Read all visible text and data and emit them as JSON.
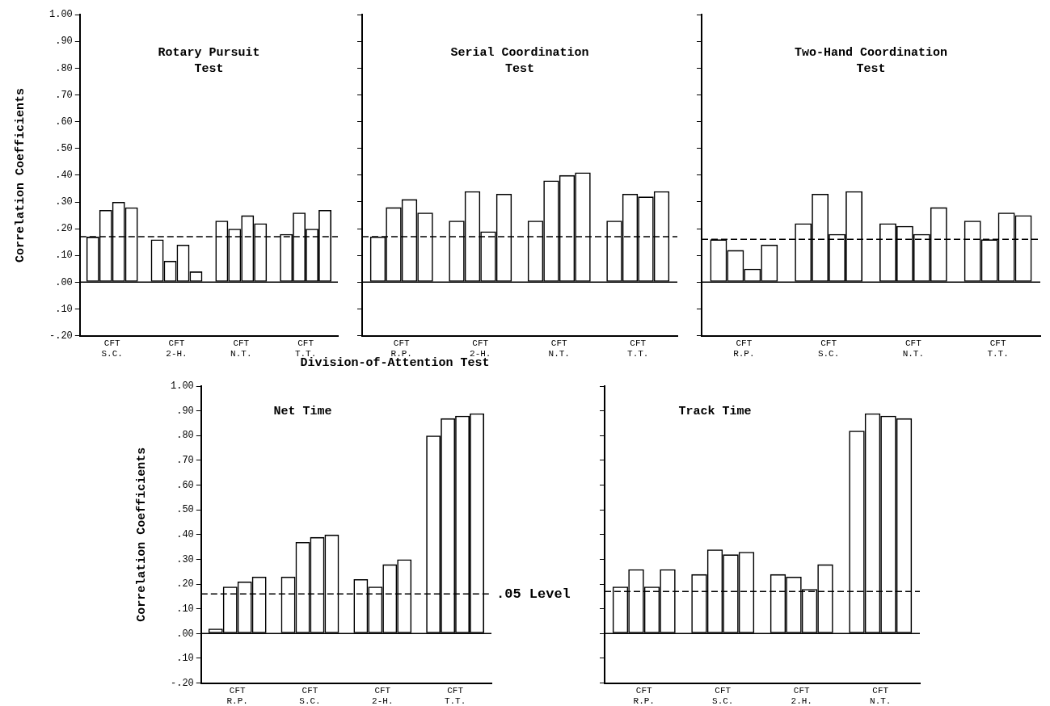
{
  "chart_data": [
    {
      "type": "bar",
      "title": "Rotary Pursuit\nTest",
      "ylabel": "Correlation Coefficients",
      "categories": [
        "CFT\nS.C.",
        "CFT\n2-H.",
        "CFT\nN.T.",
        "CFT\nT.T."
      ],
      "series": [
        {
          "color": "#000000",
          "values": [
            0.17,
            0.16,
            0.23,
            0.18
          ]
        },
        {
          "color": "#000000",
          "values": [
            0.27,
            0.08,
            0.2,
            0.26
          ]
        },
        {
          "color": "#000000",
          "values": [
            0.3,
            0.14,
            0.25,
            0.2
          ]
        },
        {
          "color": "#000000",
          "values": [
            0.28,
            0.04,
            0.22,
            0.27
          ]
        }
      ],
      "ylim": [
        -0.2,
        1
      ],
      "yticks": [
        {
          "value": -0.2,
          "label": "-.20"
        },
        {
          "value": -0.1,
          "label": ".10"
        },
        {
          "value": 0,
          "label": ".00"
        },
        {
          "value": 0.1,
          "label": ".10"
        },
        {
          "value": 0.2,
          "label": ".20"
        },
        {
          "value": 0.3,
          "label": ".30"
        },
        {
          "value": 0.4,
          "label": ".40"
        },
        {
          "value": 0.5,
          "label": ".50"
        },
        {
          "value": 0.6,
          "label": ".60"
        },
        {
          "value": 0.7,
          "label": ".70"
        },
        {
          "value": 0.8,
          "label": ".80"
        },
        {
          "value": 0.9,
          "label": ".90"
        },
        {
          "value": 1,
          "label": "1.00"
        }
      ],
      "ref_lines": [
        {
          "axis": "y",
          "value": 0.17,
          "line_style": "dashed"
        },
        {
          "axis": "y",
          "value": 0,
          "line_style": "solid"
        }
      ]
    },
    {
      "type": "bar",
      "title": "Serial Coordination\nTest",
      "categories": [
        "CFT\nR.P.",
        "CFT\n2-H.",
        "CFT\nN.T.",
        "CFT\nT.T."
      ],
      "series": [
        {
          "color": "#000000",
          "values": [
            0.17,
            0.23,
            0.23,
            0.23
          ]
        },
        {
          "color": "#000000",
          "values": [
            0.28,
            0.34,
            0.38,
            0.33
          ]
        },
        {
          "color": "#000000",
          "values": [
            0.31,
            0.19,
            0.4,
            0.32
          ]
        },
        {
          "color": "#000000",
          "values": [
            0.26,
            0.33,
            0.41,
            0.34
          ]
        }
      ],
      "ylim": [
        -0.2,
        1
      ],
      "yticks": [
        {
          "value": -0.2,
          "label": null
        },
        {
          "value": -0.1,
          "label": null
        },
        {
          "value": 0,
          "label": null
        },
        {
          "value": 0.1,
          "label": null
        },
        {
          "value": 0.2,
          "label": null
        },
        {
          "value": 0.3,
          "label": null
        },
        {
          "value": 0.4,
          "label": null
        },
        {
          "value": 0.5,
          "label": null
        },
        {
          "value": 0.6,
          "label": null
        },
        {
          "value": 0.7,
          "label": null
        },
        {
          "value": 0.8,
          "label": null
        },
        {
          "value": 0.9,
          "label": null
        },
        {
          "value": 1,
          "label": null
        }
      ],
      "tick_labels": "x",
      "ref_lines": [
        {
          "axis": "y",
          "value": 0.17,
          "line_style": "dashed"
        },
        {
          "axis": "y",
          "value": 0,
          "line_style": "solid"
        }
      ]
    },
    {
      "type": "bar",
      "title": "Two-Hand Coordination\nTest",
      "categories": [
        "CFT\nR.P.",
        "CFT\nS.C.",
        "CFT\nN.T.",
        "CFT\nT.T."
      ],
      "series": [
        {
          "color": "#000000",
          "values": [
            0.16,
            0.22,
            0.22,
            0.23
          ]
        },
        {
          "color": "#000000",
          "values": [
            0.12,
            0.33,
            0.21,
            0.16
          ]
        },
        {
          "color": "#000000",
          "values": [
            0.05,
            0.18,
            0.18,
            0.26
          ]
        },
        {
          "color": "#000000",
          "values": [
            0.14,
            0.34,
            0.28,
            0.25
          ]
        }
      ],
      "ylim": [
        -0.2,
        1
      ],
      "yticks": [
        {
          "value": -0.2,
          "label": null
        },
        {
          "value": -0.1,
          "label": null
        },
        {
          "value": 0,
          "label": null
        },
        {
          "value": 0.1,
          "label": null
        },
        {
          "value": 0.2,
          "label": null
        },
        {
          "value": 0.3,
          "label": null
        },
        {
          "value": 0.4,
          "label": null
        },
        {
          "value": 0.5,
          "label": null
        },
        {
          "value": 0.6,
          "label": null
        },
        {
          "value": 0.7,
          "label": null
        },
        {
          "value": 0.8,
          "label": null
        },
        {
          "value": 0.9,
          "label": null
        },
        {
          "value": 1,
          "label": null
        }
      ],
      "tick_labels": "x",
      "ref_lines": [
        {
          "axis": "y",
          "value": 0.16,
          "line_style": "dashed"
        },
        {
          "axis": "y",
          "value": 0,
          "line_style": "solid"
        }
      ]
    },
    {
      "type": "bar",
      "title": "Division-of-Attention Test",
      "subtitle": "Net Time",
      "ylabel": "Correlation Coefficients",
      "categories": [
        "CFT\nR.P.",
        "CFT\nS.C.",
        "CFT\n2-H.",
        "CFT\nT.T."
      ],
      "series": [
        {
          "color": "#000000",
          "values": [
            0.02,
            0.23,
            0.22,
            0.8
          ]
        },
        {
          "color": "#000000",
          "values": [
            0.19,
            0.37,
            0.19,
            0.87
          ]
        },
        {
          "color": "#000000",
          "values": [
            0.21,
            0.39,
            0.28,
            0.88
          ]
        },
        {
          "color": "#000000",
          "values": [
            0.23,
            0.4,
            0.3,
            0.89
          ]
        }
      ],
      "ylim": [
        -0.2,
        1
      ],
      "yticks": [
        {
          "value": -0.2,
          "label": "-.20"
        },
        {
          "value": -0.1,
          "label": ".10"
        },
        {
          "value": 0,
          "label": ".00"
        },
        {
          "value": 0.1,
          "label": ".10"
        },
        {
          "value": 0.2,
          "label": ".20"
        },
        {
          "value": 0.3,
          "label": ".30"
        },
        {
          "value": 0.4,
          "label": ".40"
        },
        {
          "value": 0.5,
          "label": ".50"
        },
        {
          "value": 0.6,
          "label": ".60"
        },
        {
          "value": 0.7,
          "label": ".70"
        },
        {
          "value": 0.8,
          "label": ".80"
        },
        {
          "value": 0.9,
          "label": ".90"
        },
        {
          "value": 1,
          "label": "1.00"
        }
      ],
      "ref_lines": [
        {
          "axis": "y",
          "value": 0.16,
          "line_style": "dashed",
          "label": ".05 Level"
        },
        {
          "axis": "y",
          "value": 0,
          "line_style": "solid"
        }
      ]
    },
    {
      "type": "bar",
      "subtitle": "Track Time",
      "categories": [
        "CFT\nR.P.",
        "CFT\nS.C.",
        "CFT\n2.H.",
        "CFT\nN.T."
      ],
      "series": [
        {
          "color": "#000000",
          "values": [
            0.19,
            0.24,
            0.24,
            0.82
          ]
        },
        {
          "color": "#000000",
          "values": [
            0.26,
            0.34,
            0.23,
            0.89
          ]
        },
        {
          "color": "#000000",
          "values": [
            0.19,
            0.32,
            0.18,
            0.88
          ]
        },
        {
          "color": "#000000",
          "values": [
            0.26,
            0.33,
            0.28,
            0.87
          ]
        }
      ],
      "ylim": [
        -0.2,
        1
      ],
      "yticks": [
        {
          "value": -0.2,
          "label": null
        },
        {
          "value": -0.1,
          "label": null
        },
        {
          "value": 0,
          "label": null
        },
        {
          "value": 0.1,
          "label": null
        },
        {
          "value": 0.2,
          "label": null
        },
        {
          "value": 0.3,
          "label": null
        },
        {
          "value": 0.4,
          "label": null
        },
        {
          "value": 0.5,
          "label": null
        },
        {
          "value": 0.6,
          "label": null
        },
        {
          "value": 0.7,
          "label": null
        },
        {
          "value": 0.8,
          "label": null
        },
        {
          "value": 0.9,
          "label": null
        },
        {
          "value": 1,
          "label": null
        }
      ],
      "tick_labels": "x",
      "ref_lines": [
        {
          "axis": "y",
          "value": 0.17,
          "line_style": "dashed"
        },
        {
          "axis": "y",
          "value": 0,
          "line_style": "solid"
        }
      ]
    }
  ]
}
